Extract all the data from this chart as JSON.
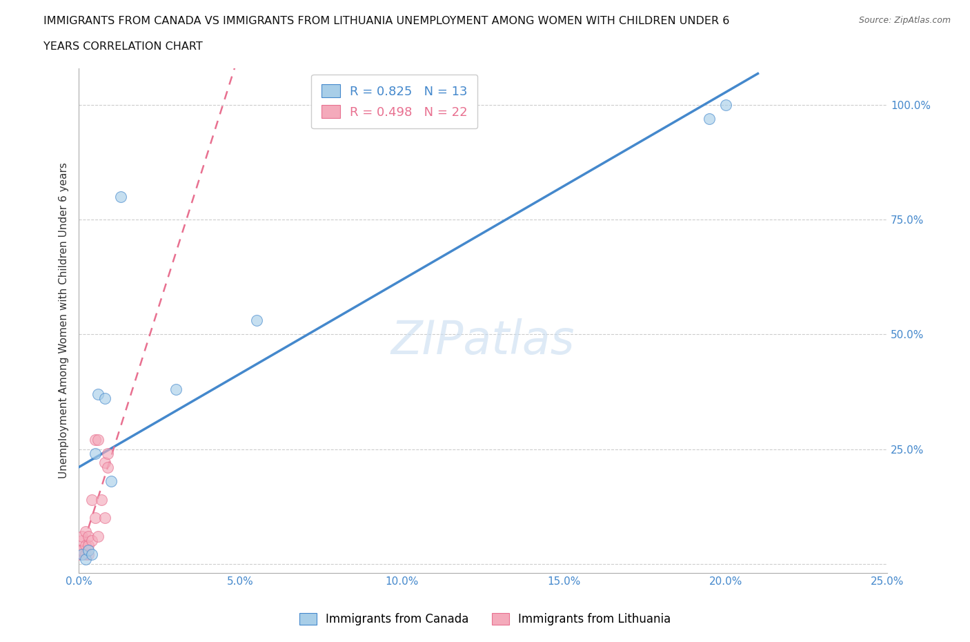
{
  "title_line1": "IMMIGRANTS FROM CANADA VS IMMIGRANTS FROM LITHUANIA UNEMPLOYMENT AMONG WOMEN WITH CHILDREN UNDER 6",
  "title_line2": "YEARS CORRELATION CHART",
  "source": "Source: ZipAtlas.com",
  "ylabel": "Unemployment Among Women with Children Under 6 years",
  "xlim": [
    0.0,
    0.25
  ],
  "ylim": [
    -0.02,
    1.08
  ],
  "xticks": [
    0.0,
    0.05,
    0.1,
    0.15,
    0.2,
    0.25
  ],
  "yticks": [
    0.0,
    0.25,
    0.5,
    0.75,
    1.0
  ],
  "xtick_labels": [
    "0.0%",
    "5.0%",
    "10.0%",
    "15.0%",
    "20.0%",
    "25.0%"
  ],
  "ytick_labels": [
    "",
    "25.0%",
    "50.0%",
    "75.0%",
    "100.0%"
  ],
  "canada_x": [
    0.001,
    0.002,
    0.003,
    0.004,
    0.005,
    0.006,
    0.008,
    0.01,
    0.013,
    0.03,
    0.055,
    0.195,
    0.2
  ],
  "canada_y": [
    0.02,
    0.01,
    0.03,
    0.02,
    0.24,
    0.37,
    0.36,
    0.18,
    0.8,
    0.38,
    0.53,
    0.97,
    1.0
  ],
  "lithuania_x": [
    0.0,
    0.0,
    0.001,
    0.001,
    0.001,
    0.002,
    0.002,
    0.002,
    0.003,
    0.003,
    0.003,
    0.004,
    0.004,
    0.005,
    0.005,
    0.006,
    0.006,
    0.007,
    0.008,
    0.008,
    0.009,
    0.009
  ],
  "lithuania_y": [
    0.02,
    0.03,
    0.03,
    0.05,
    0.06,
    0.02,
    0.04,
    0.07,
    0.02,
    0.04,
    0.06,
    0.05,
    0.14,
    0.1,
    0.27,
    0.27,
    0.06,
    0.14,
    0.1,
    0.22,
    0.21,
    0.24
  ],
  "canada_R": 0.825,
  "canada_N": 13,
  "lithuania_R": 0.498,
  "lithuania_N": 22,
  "canada_color": "#A8CEE8",
  "lithuania_color": "#F4AABB",
  "canada_line_color": "#4488CC",
  "lithuania_line_color": "#E87090",
  "watermark": "ZIPatlas",
  "background_color": "#ffffff",
  "grid_color": "#cccccc"
}
